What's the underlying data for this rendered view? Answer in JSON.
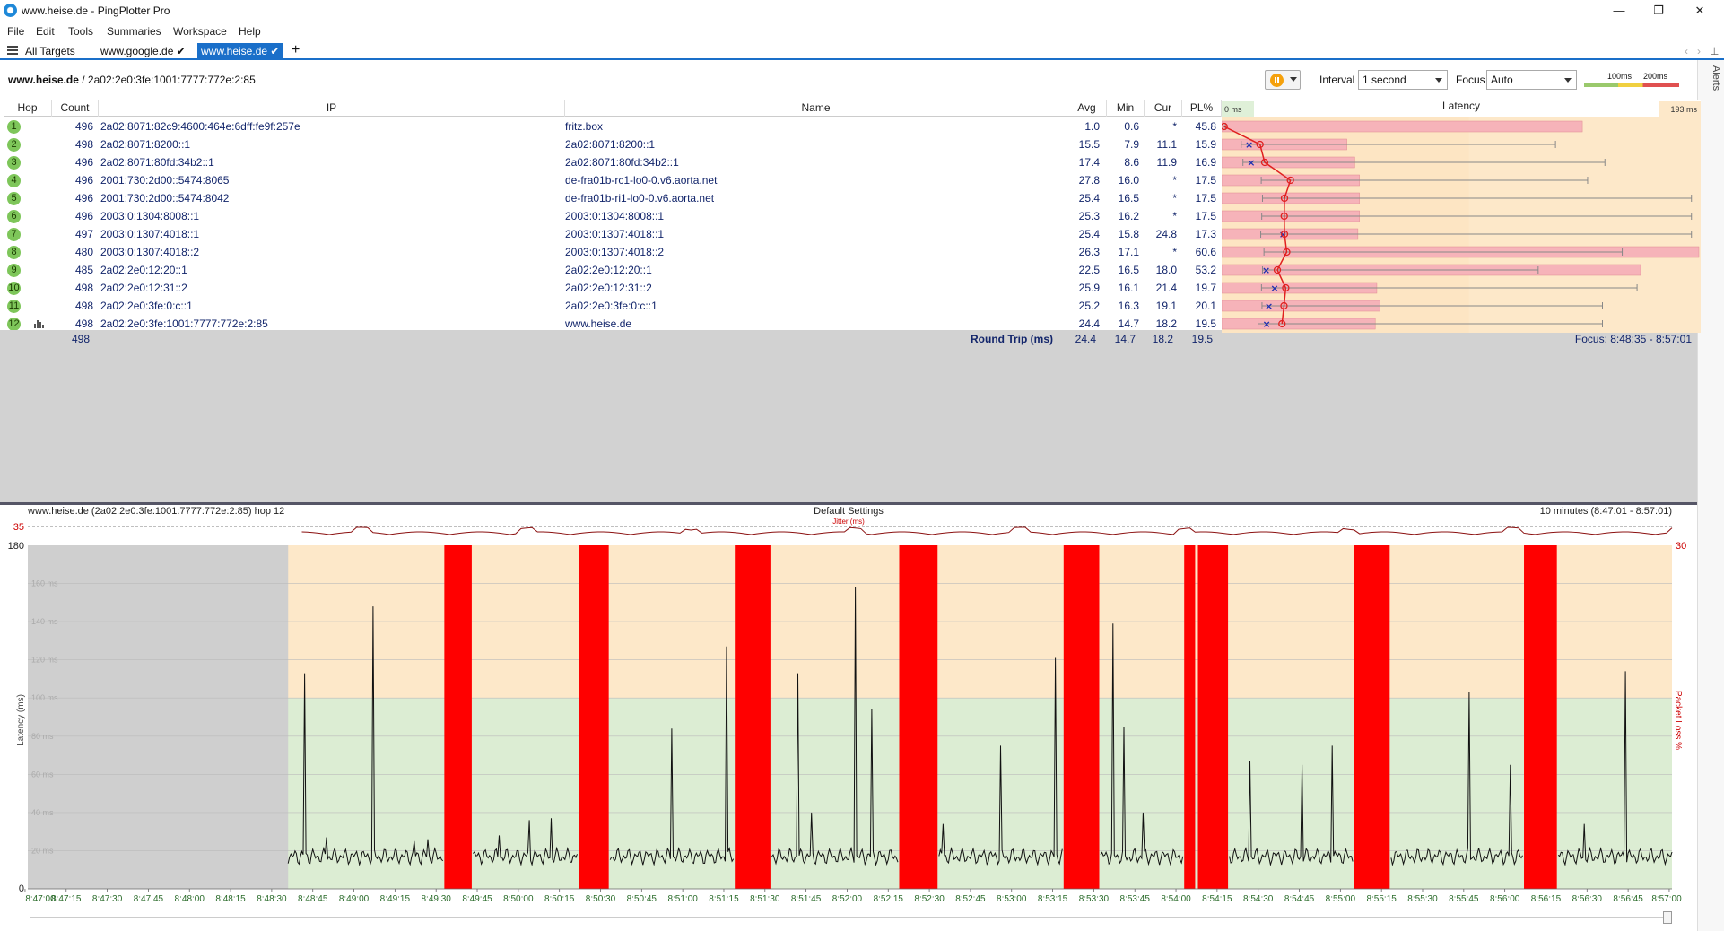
{
  "window": {
    "title": "www.heise.de - PingPlotter Pro"
  },
  "menu": [
    "File",
    "Edit",
    "Tools",
    "Summaries",
    "Workspace",
    "Help"
  ],
  "tabs": [
    {
      "label": "All Targets",
      "active": false
    },
    {
      "label": "www.google.de",
      "active": false
    },
    {
      "label": "www.heise.de",
      "active": true
    }
  ],
  "breadcrumb": {
    "host": "www.heise.de",
    "address": " / 2a02:2e0:3fe:1001:7777:772e:2:85"
  },
  "toolbar": {
    "interval_label": "Interval",
    "interval_value": "1 second",
    "focus_label": "Focus",
    "focus_value": "Auto",
    "scale_100": "100ms",
    "scale_200": "200ms",
    "alerts_label": "Alerts"
  },
  "columns": {
    "hop": "Hop",
    "count": "Count",
    "ip": "IP",
    "name": "Name",
    "avg": "Avg",
    "min": "Min",
    "cur": "Cur",
    "pl": "PL%",
    "latency": "Latency",
    "lat_min": "0 ms",
    "lat_max": "193 ms"
  },
  "hops": [
    {
      "hop": "1",
      "count": "496",
      "ip": "2a02:8071:82c9:4600:464e:6dff:fe9f:257e",
      "name": "fritz.box",
      "avg": "1.0",
      "min": "0.6",
      "cur": "*",
      "pl": "45.8",
      "avgv": 1.0,
      "minv": 0.6,
      "curv": null,
      "maxv": 1.5,
      "plv": 45.8
    },
    {
      "hop": "2",
      "count": "498",
      "ip": "2a02:8071:8200::1",
      "name": "2a02:8071:8200::1",
      "avg": "15.5",
      "min": "7.9",
      "cur": "11.1",
      "pl": "15.9",
      "avgv": 15.5,
      "minv": 7.9,
      "curv": 11.1,
      "maxv": 135,
      "plv": 15.9
    },
    {
      "hop": "3",
      "count": "496",
      "ip": "2a02:8071:80fd:34b2::1",
      "name": "2a02:8071:80fd:34b2::1",
      "avg": "17.4",
      "min": "8.6",
      "cur": "11.9",
      "pl": "16.9",
      "avgv": 17.4,
      "minv": 8.6,
      "curv": 11.9,
      "maxv": 155,
      "plv": 16.9
    },
    {
      "hop": "4",
      "count": "496",
      "ip": "2001:730:2d00::5474:8065",
      "name": "de-fra01b-rc1-lo0-0.v6.aorta.net",
      "avg": "27.8",
      "min": "16.0",
      "cur": "*",
      "pl": "17.5",
      "avgv": 27.8,
      "minv": 16.0,
      "curv": null,
      "maxv": 148,
      "plv": 17.5
    },
    {
      "hop": "5",
      "count": "496",
      "ip": "2001:730:2d00::5474:8042",
      "name": "de-fra01b-ri1-lo0-0.v6.aorta.net",
      "avg": "25.4",
      "min": "16.5",
      "cur": "*",
      "pl": "17.5",
      "avgv": 25.4,
      "minv": 16.5,
      "curv": null,
      "maxv": 190,
      "plv": 17.5
    },
    {
      "hop": "6",
      "count": "496",
      "ip": "2003:0:1304:8008::1",
      "name": "2003:0:1304:8008::1",
      "avg": "25.3",
      "min": "16.2",
      "cur": "*",
      "pl": "17.5",
      "avgv": 25.3,
      "minv": 16.2,
      "curv": null,
      "maxv": 190,
      "plv": 17.5
    },
    {
      "hop": "7",
      "count": "497",
      "ip": "2003:0:1307:4018::1",
      "name": "2003:0:1307:4018::1",
      "avg": "25.4",
      "min": "15.8",
      "cur": "24.8",
      "pl": "17.3",
      "avgv": 25.4,
      "minv": 15.8,
      "curv": 24.8,
      "maxv": 190,
      "plv": 17.3
    },
    {
      "hop": "8",
      "count": "480",
      "ip": "2003:0:1307:4018::2",
      "name": "2003:0:1307:4018::2",
      "avg": "26.3",
      "min": "17.1",
      "cur": "*",
      "pl": "60.6",
      "avgv": 26.3,
      "minv": 17.1,
      "curv": null,
      "maxv": 162,
      "plv": 60.6
    },
    {
      "hop": "9",
      "count": "485",
      "ip": "2a02:2e0:12:20::1",
      "name": "2a02:2e0:12:20::1",
      "avg": "22.5",
      "min": "16.5",
      "cur": "18.0",
      "pl": "53.2",
      "avgv": 22.5,
      "minv": 16.5,
      "curv": 18.0,
      "maxv": 128,
      "plv": 53.2
    },
    {
      "hop": "10",
      "count": "498",
      "ip": "2a02:2e0:12:31::2",
      "name": "2a02:2e0:12:31::2",
      "avg": "25.9",
      "min": "16.1",
      "cur": "21.4",
      "pl": "19.7",
      "avgv": 25.9,
      "minv": 16.1,
      "curv": 21.4,
      "maxv": 168,
      "plv": 19.7
    },
    {
      "hop": "11",
      "count": "498",
      "ip": "2a02:2e0:3fe:0:c::1",
      "name": "2a02:2e0:3fe:0:c::1",
      "avg": "25.2",
      "min": "16.3",
      "cur": "19.1",
      "pl": "20.1",
      "avgv": 25.2,
      "minv": 16.3,
      "curv": 19.1,
      "maxv": 154,
      "plv": 20.1
    },
    {
      "hop": "12",
      "count": "498",
      "ip": "2a02:2e0:3fe:1001:7777:772e:2:85",
      "name": "www.heise.de",
      "avg": "24.4",
      "min": "14.7",
      "cur": "18.2",
      "pl": "19.5",
      "avgv": 24.4,
      "minv": 14.7,
      "curv": 18.2,
      "maxv": 154,
      "plv": 19.5
    }
  ],
  "summary": {
    "count": "498",
    "label": "Round Trip (ms)",
    "avg": "24.4",
    "min": "14.7",
    "cur": "18.2",
    "pl": "19.5",
    "focus": "Focus: 8:48:35 - 8:57:01"
  },
  "chart_data": {
    "type": "line",
    "title": "Default Settings",
    "subtitle_left": "www.heise.de (2a02:2e0:3fe:1001:7777:772e:2:85) hop 12",
    "subtitle_right": "10 minutes (8:47:01 - 8:57:01)",
    "ylabel": "Latency (ms)",
    "y2label": "Packet Loss %",
    "ylim": [
      0,
      180
    ],
    "y_ticks_left": [
      "180",
      "0"
    ],
    "y_grid_labels": [
      "160 ms",
      "140 ms",
      "120 ms",
      "100 ms",
      "80 ms",
      "60 ms",
      "40 ms",
      "20 ms"
    ],
    "y2_top": "30",
    "jitter": {
      "label": "Jitter (ms)",
      "max_label": "35"
    },
    "x_ticks": [
      "8:47:00",
      "8:47:15",
      "8:47:30",
      "8:47:45",
      "8:48:00",
      "8:48:15",
      "8:48:30",
      "8:48:45",
      "8:49:00",
      "8:49:15",
      "8:49:30",
      "8:49:45",
      "8:50:00",
      "8:50:15",
      "8:50:30",
      "8:50:45",
      "8:51:00",
      "8:51:15",
      "8:51:30",
      "8:51:45",
      "8:52:00",
      "8:52:15",
      "8:52:30",
      "8:52:45",
      "8:53:00",
      "8:53:15",
      "8:53:30",
      "8:53:45",
      "8:54:00",
      "8:54:15",
      "8:54:30",
      "8:54:45",
      "8:55:00",
      "8:55:15",
      "8:55:30",
      "8:55:45",
      "8:56:00",
      "8:56:15",
      "8:56:30",
      "8:56:45",
      "8:57:00"
    ],
    "x_start_s": 0,
    "x_end_s": 600,
    "no_data_until_s": 95,
    "loss_ranges_s": [
      [
        152,
        162
      ],
      [
        201,
        212
      ],
      [
        258,
        271
      ],
      [
        318,
        332
      ],
      [
        378,
        391
      ],
      [
        422,
        426
      ],
      [
        427,
        438
      ],
      [
        484,
        497
      ],
      [
        546,
        558
      ]
    ],
    "spikes": [
      {
        "t": 101,
        "ms": 113
      },
      {
        "t": 109,
        "ms": 27
      },
      {
        "t": 126,
        "ms": 148
      },
      {
        "t": 141,
        "ms": 25
      },
      {
        "t": 146,
        "ms": 26
      },
      {
        "t": 172,
        "ms": 28
      },
      {
        "t": 183,
        "ms": 36
      },
      {
        "t": 191,
        "ms": 37
      },
      {
        "t": 235,
        "ms": 84
      },
      {
        "t": 255,
        "ms": 127
      },
      {
        "t": 281,
        "ms": 113
      },
      {
        "t": 286,
        "ms": 40
      },
      {
        "t": 302,
        "ms": 158
      },
      {
        "t": 308,
        "ms": 94
      },
      {
        "t": 334,
        "ms": 34
      },
      {
        "t": 355,
        "ms": 75
      },
      {
        "t": 375,
        "ms": 121
      },
      {
        "t": 396,
        "ms": 139
      },
      {
        "t": 400,
        "ms": 85
      },
      {
        "t": 407,
        "ms": 40
      },
      {
        "t": 446,
        "ms": 67
      },
      {
        "t": 465,
        "ms": 65
      },
      {
        "t": 476,
        "ms": 75
      },
      {
        "t": 526,
        "ms": 103
      },
      {
        "t": 541,
        "ms": 65
      },
      {
        "t": 568,
        "ms": 34
      },
      {
        "t": 583,
        "ms": 114
      }
    ],
    "baseline_ms": 17
  }
}
